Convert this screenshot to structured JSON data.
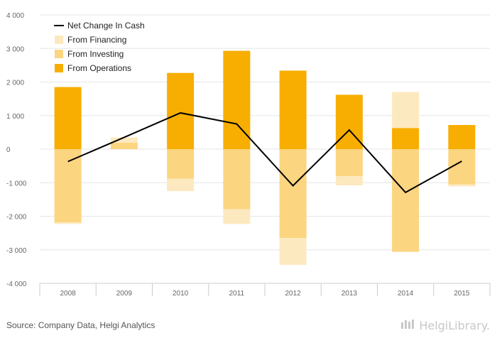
{
  "source_text": "Source: Company Data, Helgi Analytics",
  "logo_text": "HelgiLibrary.",
  "colors": {
    "financing": "#FDE9BF",
    "investing": "#FCD580",
    "operations": "#F7AE00",
    "net": "#000000",
    "grid": "#e6e6e6",
    "axis": "#cccccc"
  },
  "chart_data": {
    "type": "bar",
    "categories": [
      "2008",
      "2009",
      "2010",
      "2011",
      "2012",
      "2013",
      "2014",
      "2015"
    ],
    "series": [
      {
        "name": "From Operations",
        "values": [
          1850,
          0,
          2270,
          2930,
          2340,
          1620,
          630,
          720
        ]
      },
      {
        "name": "From Investing",
        "values": [
          -2180,
          190,
          -880,
          -1790,
          -2650,
          -810,
          -3060,
          -1050
        ]
      },
      {
        "name": "From Financing",
        "values": [
          -50,
          160,
          -370,
          -440,
          -800,
          -270,
          1070,
          -60
        ]
      },
      {
        "name": "Net Change In Cash",
        "type": "line",
        "values": [
          -370,
          350,
          1080,
          750,
          -1090,
          570,
          -1290,
          -360
        ]
      }
    ],
    "y_ticks": [
      "4 000",
      "3 000",
      "2 000",
      "1 000",
      "0",
      "-1 000",
      "-2 000",
      "-3 000",
      "-4 000"
    ],
    "ylim": [
      -4000,
      4000
    ],
    "grid": true,
    "legend_position": "top-left"
  }
}
